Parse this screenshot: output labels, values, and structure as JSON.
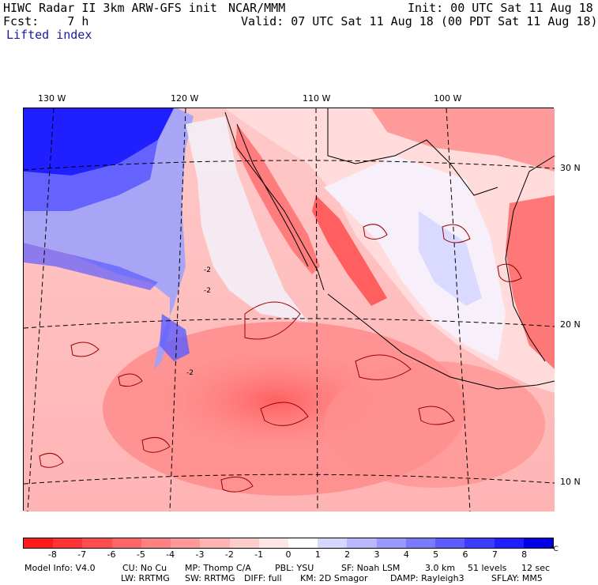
{
  "header": {
    "model_line": "HIWC Radar II 3km ARW-GFS init",
    "org": "NCAR/MMM",
    "init": "Init: 00 UTC Sat 11 Aug 18",
    "fcst": "Fcst:    7 h",
    "valid": "Valid: 07 UTC Sat 11 Aug 18 (00 PDT Sat 11 Aug 18)",
    "field": "Lifted index"
  },
  "map": {
    "lon_labels": [
      "130 W",
      "120 W",
      "110 W",
      "100 W"
    ],
    "lat_labels": [
      "30 N",
      "20 N",
      "10 N"
    ],
    "contour_labels": [
      "-2",
      "-2",
      "-2"
    ]
  },
  "colorbar": {
    "ticks": [
      "-8",
      "-7",
      "-6",
      "-5",
      "-4",
      "-3",
      "-2",
      "-1",
      "0",
      "1",
      "2",
      "3",
      "4",
      "5",
      "6",
      "7",
      "8"
    ],
    "unit": "°C",
    "colors": [
      "#ff1a1a",
      "#ff3333",
      "#ff4d4d",
      "#ff6666",
      "#ff8080",
      "#ff9999",
      "#ffb3b3",
      "#ffcccc",
      "#ffe6e6",
      "#ffffff",
      "#d6d6ff",
      "#b8b8ff",
      "#9999ff",
      "#7a7aff",
      "#5c5cff",
      "#3d3dff",
      "#1f1fff",
      "#0000e6"
    ]
  },
  "footer": {
    "line1": [
      "Model Info: V4.0",
      "CU: No Cu",
      "MP: Thomp C/A",
      "PBL: YSU",
      "SF: Noah LSM",
      "3.0 km",
      "51 levels",
      "12 sec"
    ],
    "line2": [
      "LW: RRTMG",
      "SW: RRTMG",
      "DIFF: full",
      "KM: 2D Smagor",
      "DAMP: Rayleigh3",
      "SFLAY: MM5"
    ]
  }
}
